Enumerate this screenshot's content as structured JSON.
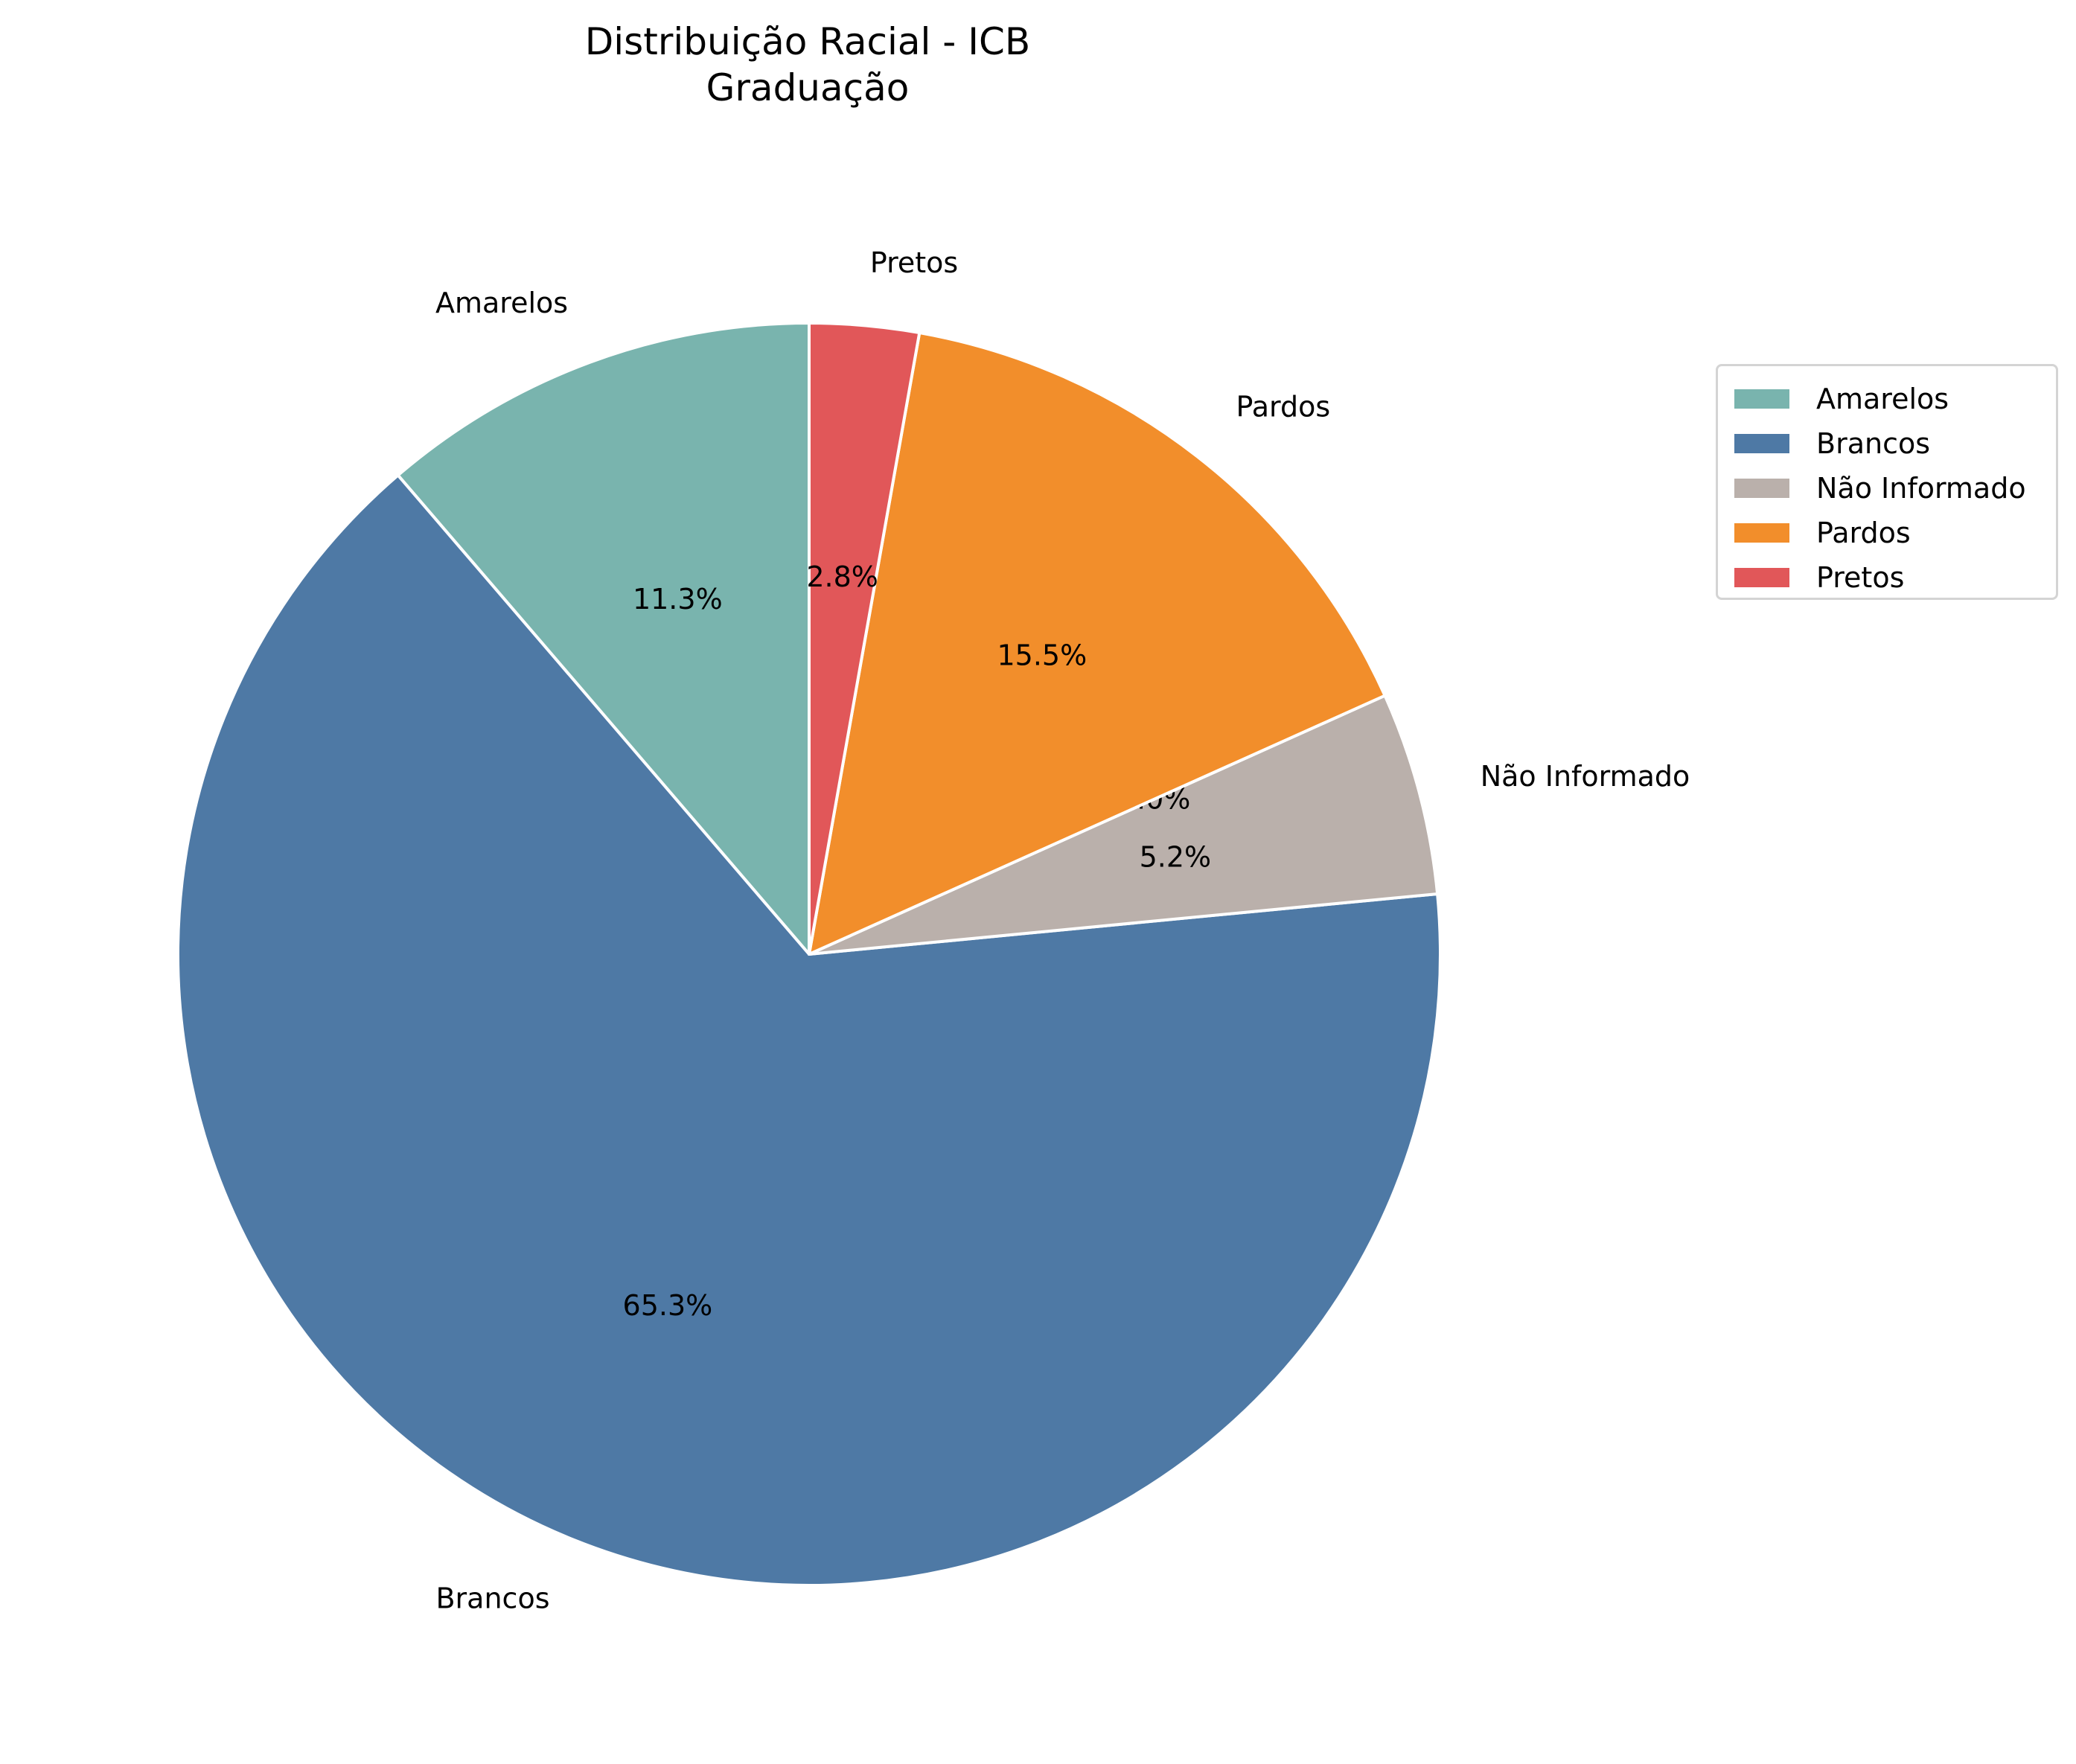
{
  "chart_data": {
    "type": "pie",
    "title": "Distribuição Racial - ICB",
    "subtitle": "Graduação",
    "legend_position": "upper-right",
    "slices": [
      {
        "label": "Amarelos",
        "value": 11.3,
        "pct_label": "11.3%",
        "color": "#79b4ae"
      },
      {
        "label": "Brancos",
        "value": 65.3,
        "pct_label": "65.3%",
        "color": "#4e79a5"
      },
      {
        "label": "Não Informado",
        "value": 5.2,
        "pct_label": "5.2%",
        "color": "#bab0ab"
      },
      {
        "label": "Não Informado",
        "value": 0.0,
        "pct_label": "0.0%",
        "color": "#bab0ab"
      },
      {
        "label": "Pardos",
        "value": 15.5,
        "pct_label": "15.5%",
        "color": "#f28e2b"
      },
      {
        "label": "Pretos",
        "value": 2.8,
        "pct_label": "2.8%",
        "color": "#e15759"
      }
    ],
    "legend": [
      {
        "label": "Amarelos",
        "color": "#79b4ae"
      },
      {
        "label": "Brancos",
        "color": "#4e79a5"
      },
      {
        "label": "Não Informado",
        "color": "#bab0ab"
      },
      {
        "label": "Pardos",
        "color": "#f28e2b"
      },
      {
        "label": "Pretos",
        "color": "#e15759"
      }
    ]
  }
}
